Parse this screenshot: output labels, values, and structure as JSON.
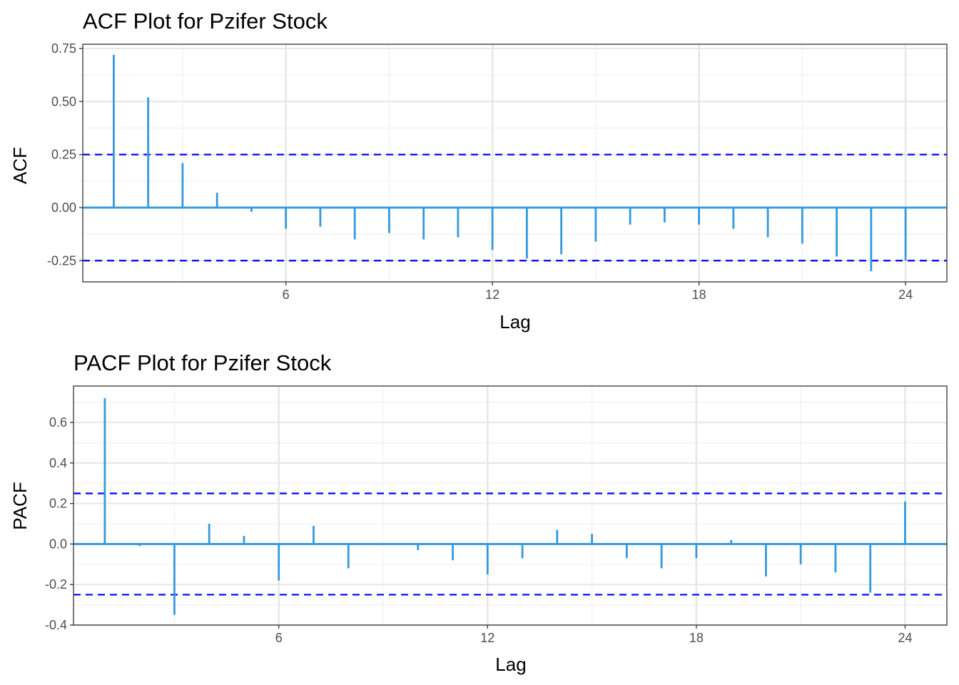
{
  "chart_data": [
    {
      "type": "bar",
      "subtype": "acf-lollipop",
      "title": "ACF Plot for Pzifer Stock",
      "xlabel": "Lag",
      "ylabel": "ACF",
      "xlim": [
        0.1,
        25.2
      ],
      "ylim": [
        -0.35,
        0.77
      ],
      "x_ticks": [
        6,
        12,
        18,
        24
      ],
      "y_ticks": [
        -0.25,
        0.0,
        0.25,
        0.5,
        0.75
      ],
      "y_tick_labels": [
        "-0.25",
        "0.00",
        "0.25",
        "0.50",
        "0.75"
      ],
      "grid": true,
      "confidence_bounds": [
        -0.25,
        0.25
      ],
      "bar_color": "#3399dd",
      "bound_color": "#0000ff",
      "lags": [
        1,
        2,
        3,
        4,
        5,
        6,
        7,
        8,
        9,
        10,
        11,
        12,
        13,
        14,
        15,
        16,
        17,
        18,
        19,
        20,
        21,
        22,
        23,
        24
      ],
      "values": [
        0.72,
        0.52,
        0.21,
        0.07,
        -0.02,
        -0.1,
        -0.09,
        -0.15,
        -0.12,
        -0.15,
        -0.14,
        -0.2,
        -0.24,
        -0.22,
        -0.16,
        -0.08,
        -0.07,
        -0.08,
        -0.1,
        -0.14,
        -0.17,
        -0.23,
        -0.3,
        -0.25
      ]
    },
    {
      "type": "bar",
      "subtype": "pacf-lollipop",
      "title": "PACF Plot for Pzifer Stock",
      "xlabel": "Lag",
      "ylabel": "PACF",
      "xlim": [
        0.1,
        25.2
      ],
      "ylim": [
        -0.4,
        0.78
      ],
      "x_ticks": [
        6,
        12,
        18,
        24
      ],
      "y_ticks": [
        -0.4,
        -0.2,
        0.0,
        0.2,
        0.4,
        0.6
      ],
      "y_tick_labels": [
        "-0.4",
        "-0.2",
        "0.0",
        "0.2",
        "0.4",
        "0.6"
      ],
      "grid": true,
      "confidence_bounds": [
        -0.25,
        0.25
      ],
      "bar_color": "#3399dd",
      "bound_color": "#0000ff",
      "lags": [
        1,
        2,
        3,
        4,
        5,
        6,
        7,
        8,
        9,
        10,
        11,
        12,
        13,
        14,
        15,
        16,
        17,
        18,
        19,
        20,
        21,
        22,
        23,
        24
      ],
      "values": [
        0.72,
        -0.01,
        -0.35,
        0.1,
        0.04,
        -0.18,
        0.09,
        -0.12,
        0.0,
        -0.03,
        -0.08,
        -0.15,
        -0.07,
        0.07,
        0.05,
        -0.07,
        -0.12,
        -0.07,
        0.02,
        -0.16,
        -0.1,
        -0.14,
        -0.24,
        0.21
      ]
    }
  ]
}
